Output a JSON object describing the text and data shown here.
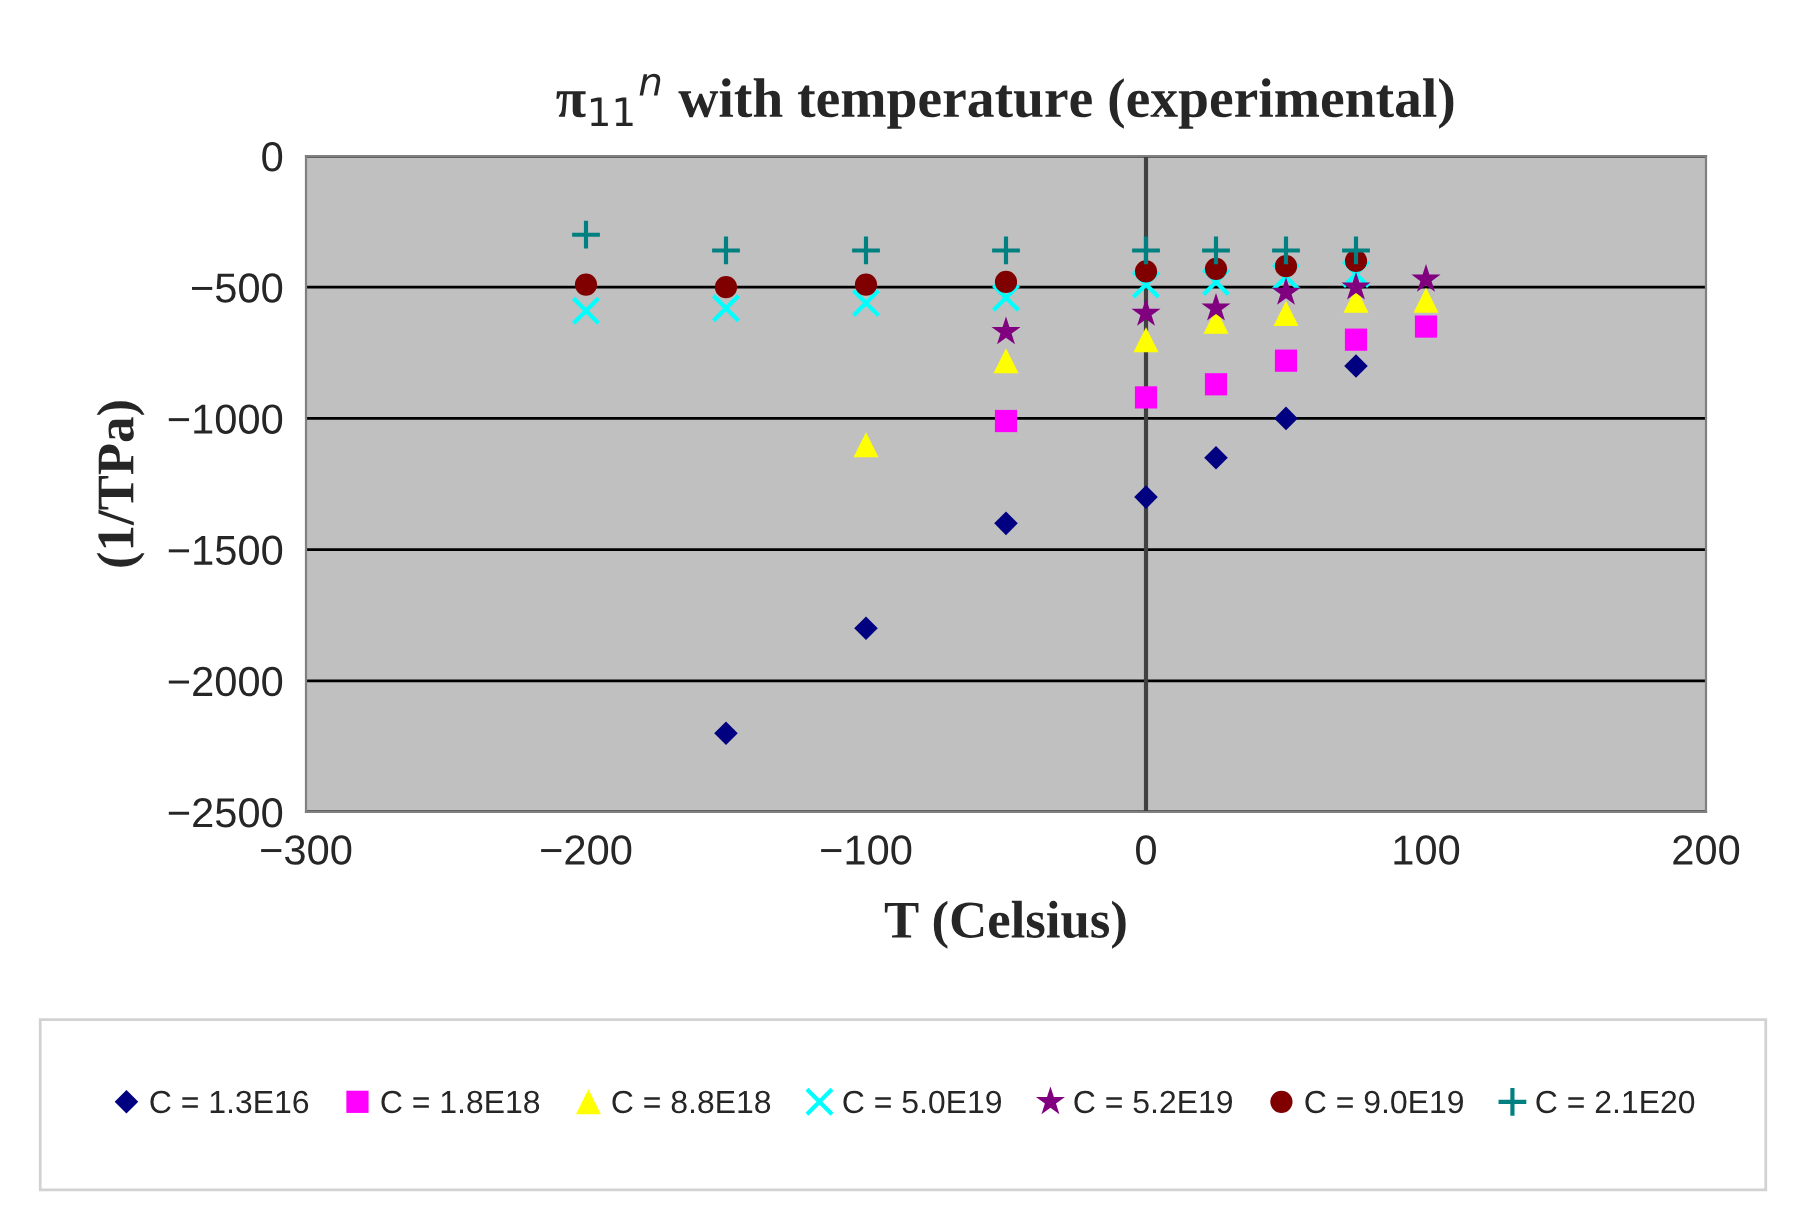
{
  "chart_data": {
    "type": "scatter",
    "title": "π$_{11}$$^{n}$ with temperature (experimental)",
    "xlabel": "T (Celsius)",
    "ylabel": "(1/TPa)",
    "xlim": [
      -300,
      200
    ],
    "xticks": [
      -300,
      -200,
      -100,
      0,
      100,
      200
    ],
    "ylim": [
      -2500,
      0
    ],
    "yticks": [
      -2500,
      -2000,
      -1500,
      -1000,
      -500,
      0
    ],
    "grid": "y",
    "legend": "bottom",
    "ref_lines": [
      {
        "axis": "x",
        "value": 0,
        "color": "#404040"
      }
    ],
    "series": [
      {
        "name": "C = 1.3E16",
        "color": "#000080",
        "marker": "diamond",
        "x": [
          -150,
          -100,
          -50,
          0,
          25,
          50,
          75
        ],
        "values": [
          -2200,
          -1800,
          -1400,
          -1300,
          -1150,
          -1000,
          -800
        ]
      },
      {
        "name": "C = 1.8E18",
        "color": "#ff00ff",
        "marker": "square",
        "x": [
          -50,
          0,
          25,
          50,
          75,
          100
        ],
        "values": [
          -1010,
          -920,
          -870,
          -780,
          -700,
          -650
        ]
      },
      {
        "name": "C = 8.8E18",
        "color": "#ffff00",
        "marker": "triangle",
        "x": [
          -100,
          -50,
          0,
          25,
          50,
          75,
          100
        ],
        "values": [
          -1100,
          -780,
          -700,
          -630,
          -600,
          -550,
          -550
        ]
      },
      {
        "name": "C = 5.0E19",
        "color": "#00ffff",
        "marker": "cross",
        "x": [
          -200,
          -150,
          -100,
          -50,
          0,
          25,
          50,
          75
        ],
        "values": [
          -590,
          -580,
          -560,
          -540,
          -490,
          -480,
          -460,
          -450
        ]
      },
      {
        "name": "C = 5.2E19",
        "color": "#800080",
        "marker": "star",
        "x": [
          -50,
          0,
          25,
          50,
          75,
          100
        ],
        "values": [
          -670,
          -600,
          -580,
          -520,
          -500,
          -470
        ]
      },
      {
        "name": "C = 9.0E19",
        "color": "#800000",
        "marker": "circle",
        "x": [
          -200,
          -150,
          -100,
          -50,
          0,
          25,
          50,
          75
        ],
        "values": [
          -490,
          -500,
          -490,
          -480,
          -440,
          -430,
          -420,
          -400
        ]
      },
      {
        "name": "C = 2.1E20",
        "color": "#008080",
        "marker": "plus",
        "x": [
          -200,
          -150,
          -100,
          -50,
          0,
          25,
          50,
          75
        ],
        "values": [
          -300,
          -360,
          -360,
          -360,
          -360,
          -360,
          -360,
          -360
        ]
      }
    ]
  }
}
